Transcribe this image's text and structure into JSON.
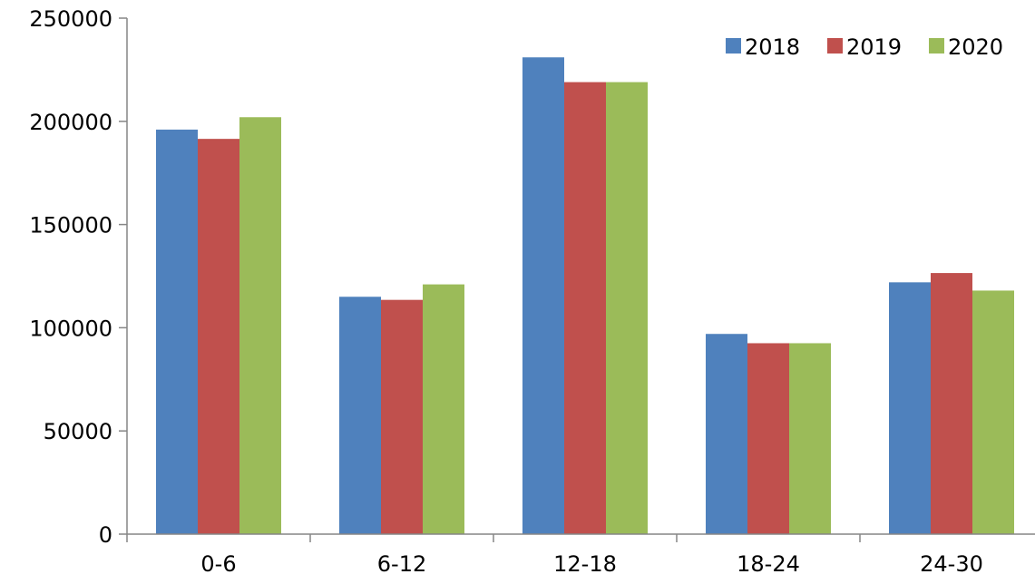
{
  "chart_data": {
    "type": "bar",
    "categories": [
      "0-6",
      "6-12",
      "12-18",
      "18-24",
      "24-30"
    ],
    "series": [
      {
        "name": "2018",
        "color": "#4F81BD",
        "values": [
          196000,
          115000,
          231000,
          97000,
          122000
        ]
      },
      {
        "name": "2019",
        "color": "#C0504D",
        "values": [
          191500,
          113500,
          219000,
          92500,
          126500
        ]
      },
      {
        "name": "2020",
        "color": "#9BBB59",
        "values": [
          202000,
          121000,
          219000,
          92500,
          118000
        ]
      }
    ],
    "title": "",
    "xlabel": "",
    "ylabel": "",
    "ylim": [
      0,
      250000
    ],
    "yticks": [
      0,
      50000,
      100000,
      150000,
      200000,
      250000
    ],
    "grid": false,
    "legend_position": "top-right"
  }
}
